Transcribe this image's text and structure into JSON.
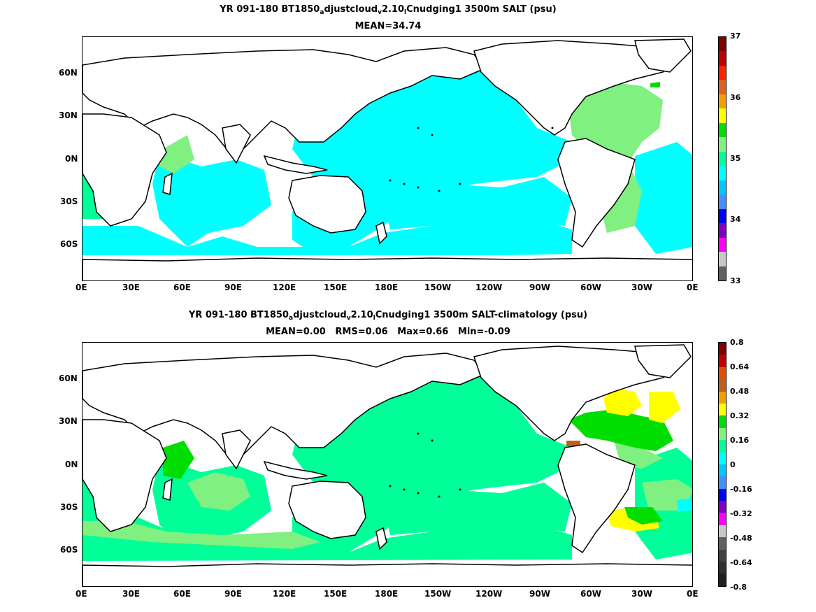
{
  "panel_top": {
    "title_prefix": "YR 091-180 BT1850",
    "title_sub1": "a",
    "title_mid": "djustcloud",
    "title_sub2": "v",
    "title_mid2": "2.10",
    "title_sub3": "l",
    "title_suffix": "Cnudging1 3500m SALT (psu)",
    "stats": "MEAN=34.74",
    "colorbar_labels": [
      "37",
      "36",
      "35",
      "34",
      "33"
    ],
    "colorbar_colors": [
      "#800000",
      "#c00000",
      "#ff2000",
      "#e06020",
      "#f0a000",
      "#ffff00",
      "#00dd00",
      "#80f080",
      "#00ff99",
      "#00ffff",
      "#00c8ff",
      "#4090ff",
      "#0000ff",
      "#8000c0",
      "#ff00ff",
      "#c8c8c8",
      "#606060"
    ]
  },
  "panel_bottom": {
    "title_prefix": "YR 091-180 BT1850",
    "title_sub1": "a",
    "title_mid": "djustcloud",
    "title_sub2": "v",
    "title_mid2": "2.10",
    "title_sub3": "l",
    "title_suffix": "Cnudging1 3500m SALT-climatology (psu)",
    "stats": "MEAN=0.00   RMS=0.06   Max=0.66   Min=-0.09",
    "colorbar_labels": [
      "0.8",
      "0.64",
      "0.48",
      "0.32",
      "0.16",
      "0",
      "-0.16",
      "-0.32",
      "-0.48",
      "-0.64",
      "-0.8"
    ],
    "colorbar_colors": [
      "#800000",
      "#c00000",
      "#e05000",
      "#c06020",
      "#f0a000",
      "#ffff00",
      "#00dd00",
      "#80f080",
      "#00ff99",
      "#00ffff",
      "#00c8ff",
      "#4090ff",
      "#0000ff",
      "#8000c0",
      "#ff00ff",
      "#c8c8c8",
      "#606060",
      "#404040",
      "#303030",
      "#202020"
    ]
  },
  "axes": {
    "x_ticks": [
      "0E",
      "30E",
      "60E",
      "90E",
      "120E",
      "150E",
      "180E",
      "150W",
      "120W",
      "90W",
      "60W",
      "30W",
      "0E"
    ],
    "y_ticks": [
      "60N",
      "30N",
      "0N",
      "30S",
      "60S"
    ]
  },
  "colors": {
    "land": "#ffffff",
    "coast": "#000000",
    "cyan": "#00ffff",
    "sea_green": "#00ff99",
    "light_green": "#80f080",
    "green": "#00dd00",
    "yellow": "#ffff00",
    "brown": "#c06020"
  }
}
